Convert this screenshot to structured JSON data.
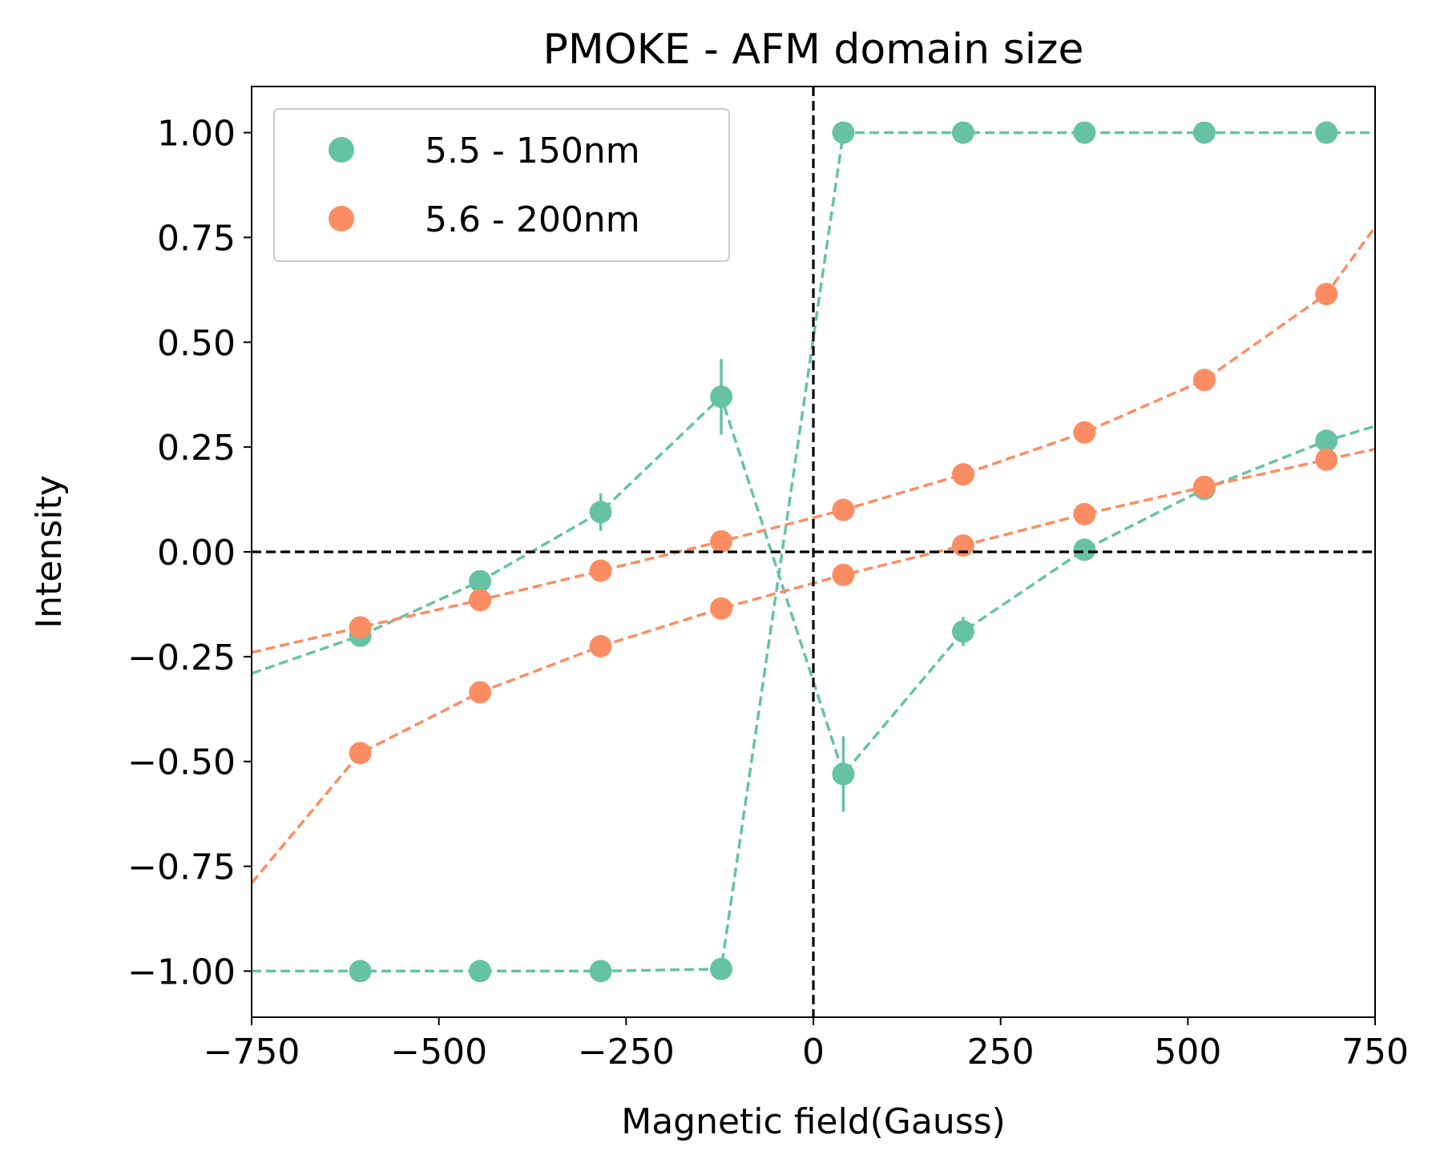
{
  "chart_data": {
    "type": "scatter",
    "title": "PMOKE - AFM domain size",
    "xlabel": "Magnetic field(Gauss)",
    "ylabel": "Intensity",
    "xlim": [
      -750,
      750
    ],
    "ylim": [
      -1.11,
      1.11
    ],
    "xticks": [
      -750,
      -500,
      -250,
      0,
      250,
      500,
      750
    ],
    "xtick_labels": [
      "−750",
      "−500",
      "−250",
      "0",
      "250",
      "500",
      "750"
    ],
    "yticks": [
      1.0,
      0.75,
      0.5,
      0.25,
      0.0,
      -0.25,
      -0.5,
      -0.75,
      -1.0
    ],
    "ytick_labels": [
      "1.00",
      "0.75",
      "0.50",
      "0.25",
      "0.00",
      "−0.25",
      "−0.50",
      "−0.75",
      "−1.00"
    ],
    "grid": false,
    "legend_position": "top-left",
    "reference_lines": {
      "x": 0,
      "y": 0,
      "style": "dashed",
      "color": "#000000"
    },
    "series": [
      {
        "name": "5.5 - 150nm",
        "color": "#66c2a5",
        "branches": [
          {
            "x": [
              -750,
              -605,
              -445,
              -284,
              -123,
              40,
              200,
              362,
              522,
              685,
              750
            ],
            "y": [
              -1.0,
              -1.0,
              -1.0,
              -1.0,
              -0.995,
              1.0,
              1.0,
              1.0,
              1.0,
              1.0,
              1.0
            ],
            "markers": [
              false,
              true,
              true,
              true,
              true,
              true,
              true,
              true,
              true,
              true,
              false
            ],
            "yerr": [
              0,
              0,
              0,
              0,
              0,
              0,
              0,
              0,
              0,
              0,
              0
            ]
          },
          {
            "x": [
              -750,
              -605,
              -445,
              -284,
              -123,
              40,
              200,
              362,
              522,
              685,
              750
            ],
            "y": [
              -0.29,
              -0.2,
              -0.07,
              0.095,
              0.37,
              -0.53,
              -0.19,
              0.005,
              0.15,
              0.265,
              0.3
            ],
            "markers": [
              false,
              true,
              true,
              true,
              true,
              true,
              true,
              true,
              true,
              true,
              false
            ],
            "yerr": [
              0,
              0.0,
              0.0,
              0.045,
              0.09,
              0.09,
              0.035,
              0.0,
              0.0,
              0.0,
              0
            ]
          }
        ]
      },
      {
        "name": "5.6 - 200nm",
        "color": "#fc8d62",
        "branches": [
          {
            "x": [
              -750,
              -605,
              -445,
              -284,
              -123,
              40,
              200,
              362,
              522,
              685,
              750
            ],
            "y": [
              -0.79,
              -0.48,
              -0.335,
              -0.225,
              -0.135,
              -0.055,
              0.015,
              0.09,
              0.155,
              0.22,
              0.245
            ],
            "markers": [
              false,
              true,
              true,
              true,
              true,
              true,
              true,
              true,
              true,
              true,
              false
            ],
            "yerr": [
              0,
              0,
              0,
              0,
              0,
              0,
              0,
              0,
              0,
              0,
              0
            ]
          },
          {
            "x": [
              -750,
              -605,
              -445,
              -284,
              -123,
              40,
              200,
              362,
              522,
              685,
              750
            ],
            "y": [
              -0.24,
              -0.18,
              -0.115,
              -0.045,
              0.025,
              0.1,
              0.185,
              0.285,
              0.41,
              0.615,
              0.775
            ],
            "markers": [
              false,
              true,
              true,
              true,
              true,
              true,
              true,
              true,
              true,
              true,
              false
            ],
            "yerr": [
              0,
              0,
              0,
              0,
              0,
              0,
              0,
              0,
              0,
              0,
              0
            ]
          }
        ]
      }
    ]
  }
}
